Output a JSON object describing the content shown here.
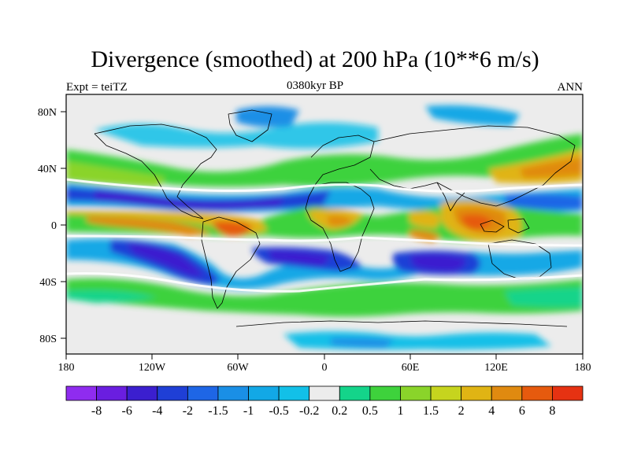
{
  "title": "Divergence (smoothed) at 200 hPa (10**6 m/s)",
  "subtitle_left": "Expt = teiTZ",
  "subtitle_center": "0380kyr BP",
  "subtitle_right": "ANN",
  "x_ticks": [
    "180",
    "120W",
    "60W",
    "0",
    "60E",
    "120E",
    "180"
  ],
  "y_ticks": [
    "80N",
    "40N",
    "0",
    "40S",
    "80S"
  ],
  "colorbar": {
    "labels": [
      "-8",
      "-6",
      "-4",
      "-2",
      "-1.5",
      "-1",
      "-0.5",
      "-0.2",
      "0.2",
      "0.5",
      "1",
      "1.5",
      "2",
      "4",
      "6",
      "8"
    ],
    "colors": [
      "#8f2cef",
      "#6a1ee0",
      "#3b1fcf",
      "#1f3fd6",
      "#1e66e6",
      "#1a8fe6",
      "#12a8e6",
      "#12c0e8",
      "#ececec",
      "#14d48a",
      "#3ed23c",
      "#8ad42a",
      "#c6d41e",
      "#e0b414",
      "#e08a10",
      "#e65a0e",
      "#e63212"
    ]
  },
  "colors": {
    "land_outline": "#000000",
    "neutral": "#ececec"
  }
}
